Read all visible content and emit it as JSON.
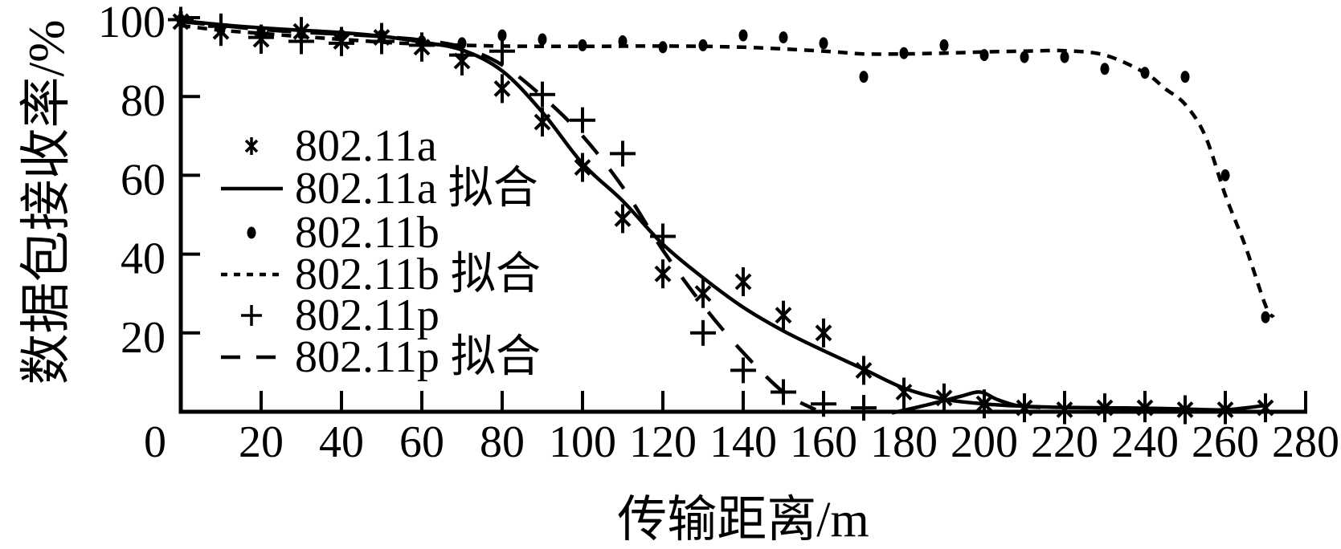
{
  "chart_data": {
    "type": "line",
    "title": "",
    "xlabel": "传输距离/m",
    "ylabel": "数据包接收率/%",
    "xlim": [
      0,
      280
    ],
    "ylim": [
      0,
      100
    ],
    "x_ticks": [
      0,
      20,
      40,
      60,
      80,
      100,
      120,
      140,
      160,
      180,
      200,
      220,
      240,
      260,
      280
    ],
    "y_ticks": [
      20,
      40,
      60,
      80,
      100
    ],
    "grid": false,
    "legend_position": "upper-left-inside",
    "colors": {
      "ink": "#000000",
      "background": "#ffffff"
    },
    "series": [
      {
        "name": "802.11a",
        "kind": "scatter",
        "marker": "star",
        "x": [
          0,
          10,
          20,
          30,
          40,
          50,
          60,
          70,
          80,
          90,
          100,
          110,
          120,
          130,
          140,
          150,
          160,
          170,
          180,
          190,
          200,
          210,
          220,
          230,
          240,
          250,
          260,
          270
        ],
        "y": [
          99,
          96.5,
          94.5,
          96.5,
          94,
          95,
          92.5,
          89,
          82,
          73.5,
          62,
          49,
          35,
          30,
          33,
          24.5,
          20,
          10.5,
          5,
          3.5,
          2,
          1,
          0.5,
          1,
          1,
          0.5,
          0.5,
          1
        ]
      },
      {
        "name": "802.11a 拟合",
        "kind": "line",
        "style": "solid",
        "segments": [
          [
            [
              0,
              99.3
            ],
            [
              10,
              98.2
            ],
            [
              20,
              97.4
            ],
            [
              30,
              96.8
            ],
            [
              40,
              96.2
            ],
            [
              50,
              95.3
            ],
            [
              60,
              93.8
            ],
            [
              70,
              91.8
            ],
            [
              80,
              86.5
            ],
            [
              90,
              76
            ],
            [
              100,
              63
            ],
            [
              110,
              53.5
            ],
            [
              120,
              42.5
            ],
            [
              130,
              34
            ],
            [
              140,
              26.5
            ],
            [
              150,
              20.5
            ],
            [
              160,
              15.5
            ],
            [
              170,
              10.8
            ],
            [
              180,
              6
            ],
            [
              190,
              3.2
            ],
            [
              200,
              2
            ],
            [
              210,
              1.4
            ],
            [
              220,
              1.1
            ],
            [
              230,
              1
            ],
            [
              240,
              0.9
            ],
            [
              250,
              0.7
            ],
            [
              260,
              0.5
            ],
            [
              270,
              1.6
            ]
          ],
          [
            [
              177,
              -0.3
            ],
            [
              186,
              1.8
            ],
            [
              194,
              3.9
            ],
            [
              199,
              5
            ],
            [
              203,
              3.2
            ],
            [
              208,
              1.6
            ],
            [
              214,
              1.1
            ]
          ]
        ]
      },
      {
        "name": "802.11b",
        "kind": "scatter",
        "marker": "dot",
        "x": [
          0,
          10,
          20,
          30,
          40,
          50,
          60,
          70,
          80,
          90,
          100,
          110,
          120,
          130,
          140,
          150,
          160,
          170,
          180,
          190,
          200,
          210,
          220,
          230,
          240,
          250,
          260,
          270
        ],
        "y": [
          99.5,
          97,
          96.5,
          96,
          95.5,
          95.5,
          94,
          93.5,
          95.5,
          94.5,
          93,
          94,
          92.5,
          93,
          95.5,
          95,
          93.5,
          85,
          91,
          93,
          90.5,
          90,
          90,
          87,
          86,
          85,
          60,
          24
        ]
      },
      {
        "name": "802.11b 拟合",
        "kind": "line",
        "style": "dash-fine",
        "segments": [
          [
            [
              0,
              98
            ],
            [
              10,
              96.8
            ],
            [
              20,
              96
            ],
            [
              30,
              95.2
            ],
            [
              40,
              94.5
            ],
            [
              50,
              93.8
            ],
            [
              60,
              93.3
            ],
            [
              80,
              92.8
            ],
            [
              100,
              92.7
            ],
            [
              120,
              92.8
            ],
            [
              140,
              92.5
            ],
            [
              160,
              91.5
            ],
            [
              170,
              90.8
            ],
            [
              180,
              90.8
            ],
            [
              190,
              91
            ],
            [
              200,
              91.3
            ],
            [
              210,
              91.5
            ],
            [
              220,
              91.6
            ],
            [
              230,
              90.5
            ],
            [
              240,
              86
            ],
            [
              245,
              82
            ],
            [
              250,
              78
            ],
            [
              255,
              70
            ],
            [
              260,
              55
            ],
            [
              265,
              42
            ],
            [
              270,
              27
            ],
            [
              272,
              24
            ]
          ]
        ]
      },
      {
        "name": "802.11p",
        "kind": "scatter",
        "marker": "plus",
        "x": [
          0,
          10,
          20,
          30,
          40,
          50,
          60,
          70,
          80,
          90,
          100,
          110,
          120,
          130,
          140,
          150,
          160,
          170
        ],
        "y": [
          99.5,
          97.8,
          95,
          94,
          93.5,
          94,
          93,
          90.5,
          91.5,
          80.5,
          74,
          65.5,
          44.5,
          20,
          10.5,
          5,
          2,
          1
        ]
      },
      {
        "name": "802.11p 拟合",
        "kind": "line",
        "style": "dash-long",
        "segments": [
          [
            [
              0,
              99
            ],
            [
              10,
              98
            ],
            [
              20,
              97
            ],
            [
              30,
              96.3
            ],
            [
              40,
              95.8
            ],
            [
              50,
              95.2
            ],
            [
              60,
              94.3
            ],
            [
              70,
              92.5
            ],
            [
              80,
              88
            ],
            [
              90,
              80
            ],
            [
              100,
              70
            ],
            [
              110,
              57
            ],
            [
              120,
              41
            ],
            [
              130,
              27
            ],
            [
              140,
              15
            ],
            [
              150,
              5
            ],
            [
              158,
              0.5
            ]
          ]
        ]
      }
    ]
  }
}
